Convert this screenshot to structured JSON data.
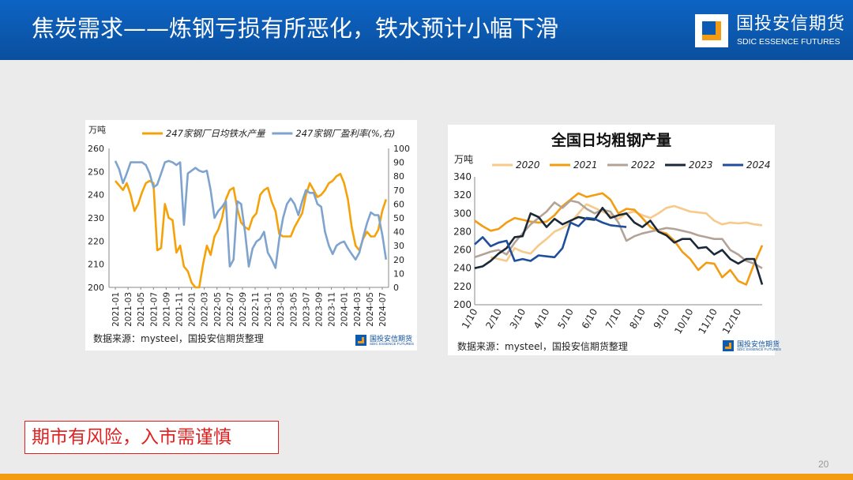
{
  "slide": {
    "title": "焦炭需求——炼钢亏损有所恶化，铁水预计小幅下滑",
    "page_number": "20",
    "risk_notice": "期市有风险，入市需谨慎"
  },
  "logo": {
    "name_cn": "国投安信期货",
    "name_en": "SDIC ESSENCE FUTURES",
    "mini_cn": "国投安信期货",
    "mini_en": "SDIC ESSENCE FUTURES"
  },
  "colors": {
    "header": "#0b5bb5",
    "accent": "#f39c12",
    "risk": "#e02020"
  },
  "chart_data": [
    {
      "type": "line",
      "title": "",
      "left_unit": "万吨",
      "source": "数据来源：mysteel，国投安信期货整理",
      "x_ticks": [
        "2021-01",
        "2021-03",
        "2021-05",
        "2021-07",
        "2021-09",
        "2021-11",
        "2022-01",
        "2022-03",
        "2022-05",
        "2022-07",
        "2022-09",
        "2022-11",
        "2023-01",
        "2023-03",
        "2023-05",
        "2023-07",
        "2023-09",
        "2023-11",
        "2024-01",
        "2024-03",
        "2024-05",
        "2024-07"
      ],
      "y_left": {
        "min": 200,
        "max": 260,
        "ticks": [
          200,
          210,
          220,
          230,
          240,
          250,
          260
        ]
      },
      "y_right": {
        "min": 0,
        "max": 100,
        "ticks": [
          0,
          10,
          20,
          30,
          40,
          50,
          60,
          70,
          80,
          90,
          100
        ]
      },
      "series": [
        {
          "name": "247家钢厂日均铁水产量",
          "axis": "left",
          "color": "#f5a20a",
          "x": [
            0,
            0.3,
            0.6,
            0.9,
            1.2,
            1.5,
            1.8,
            2.1,
            2.4,
            2.7,
            3,
            3.3,
            3.6,
            3.9,
            4.2,
            4.5,
            4.8,
            5.1,
            5.4,
            5.7,
            6,
            6.3,
            6.6,
            6.9,
            7.2,
            7.5,
            7.8,
            8.1,
            8.4,
            8.7,
            9,
            9.3,
            9.6,
            9.9,
            10.2,
            10.5,
            10.8,
            11.1,
            11.4,
            11.7,
            12,
            12.3,
            12.6,
            12.9,
            13.2,
            13.5,
            13.8,
            14.1,
            14.4,
            14.7,
            15,
            15.3,
            15.6,
            15.9,
            16.2,
            16.5,
            16.8,
            17.1,
            17.4,
            17.7,
            18,
            18.3,
            18.6,
            18.9,
            19.2,
            19.5,
            19.8,
            20.1,
            20.4,
            20.7,
            21,
            21.3
          ],
          "values": [
            246,
            244,
            242,
            245,
            240,
            233,
            236,
            241,
            245,
            246,
            245,
            216,
            217,
            236,
            230,
            229,
            215,
            218,
            209,
            207,
            202,
            200,
            200,
            210,
            218,
            214,
            222,
            225,
            230,
            238,
            242,
            243,
            234,
            228,
            226,
            225,
            230,
            232,
            240,
            242,
            243,
            237,
            233,
            223,
            222,
            222,
            222,
            226,
            229,
            232,
            240,
            245,
            242,
            239,
            240,
            242,
            245,
            246,
            248,
            249,
            245,
            238,
            226,
            218,
            216,
            221,
            224,
            222,
            222,
            225,
            233,
            238
          ]
        },
        {
          "name": "247家钢厂盈利率(%,右)",
          "axis": "right",
          "color": "#7fa3cf",
          "x": [
            0,
            0.3,
            0.6,
            0.9,
            1.2,
            1.5,
            1.8,
            2.1,
            2.4,
            2.7,
            3,
            3.3,
            3.6,
            3.9,
            4.2,
            4.5,
            4.8,
            5.1,
            5.4,
            5.7,
            6,
            6.3,
            6.6,
            6.9,
            7.2,
            7.5,
            7.8,
            8.1,
            8.4,
            8.7,
            9,
            9.3,
            9.6,
            9.9,
            10.2,
            10.5,
            10.8,
            11.1,
            11.4,
            11.7,
            12,
            12.3,
            12.6,
            12.9,
            13.2,
            13.5,
            13.8,
            14.1,
            14.4,
            14.7,
            15,
            15.3,
            15.6,
            15.9,
            16.2,
            16.5,
            16.8,
            17.1,
            17.4,
            17.7,
            18,
            18.3,
            18.6,
            18.9,
            19.2,
            19.5,
            19.8,
            20.1,
            20.4,
            20.7,
            21,
            21.3
          ],
          "values": [
            91,
            85,
            75,
            82,
            90,
            90,
            90,
            90,
            88,
            82,
            72,
            74,
            82,
            90,
            91,
            90,
            88,
            90,
            45,
            82,
            84,
            86,
            84,
            83,
            84,
            70,
            50,
            55,
            58,
            62,
            15,
            20,
            62,
            60,
            40,
            15,
            28,
            33,
            35,
            40,
            25,
            20,
            14,
            35,
            50,
            60,
            64,
            60,
            52,
            62,
            70,
            68,
            68,
            60,
            58,
            40,
            30,
            24,
            30,
            32,
            33,
            28,
            24,
            20,
            25,
            36,
            46,
            54,
            52,
            52,
            38,
            20
          ]
        }
      ]
    },
    {
      "type": "line",
      "title": "全国日均粗钢产量",
      "y_unit": "万吨",
      "source": "数据来源：mysteel，国投安信期货整理",
      "x_ticks": [
        "1/10",
        "2/10",
        "3/10",
        "4/10",
        "5/10",
        "6/10",
        "7/10",
        "8/10",
        "9/10",
        "10/10",
        "11/10",
        "12/10"
      ],
      "y_axis": {
        "min": 200,
        "max": 340,
        "ticks": [
          200,
          220,
          240,
          260,
          280,
          300,
          320,
          340
        ]
      },
      "series": [
        {
          "name": "2020",
          "color": "#f7c98a",
          "x": [
            2,
            3,
            4,
            5,
            6,
            7,
            8,
            9,
            10,
            11,
            12,
            13,
            14,
            15,
            16,
            17,
            18,
            19,
            20,
            21,
            22,
            23,
            24,
            25,
            26,
            27,
            28,
            29,
            30,
            31,
            32,
            33,
            34,
            35,
            36
          ],
          "values": [
            252,
            250,
            248,
            262,
            258,
            256,
            265,
            272,
            280,
            284,
            290,
            300,
            310,
            306,
            302,
            298,
            294,
            300,
            302,
            298,
            295,
            300,
            306,
            308,
            305,
            302,
            301,
            300,
            292,
            288,
            290,
            289,
            290,
            288,
            287
          ]
        },
        {
          "name": "2021",
          "color": "#f39c12",
          "x": [
            0,
            1,
            2,
            3,
            4,
            5,
            6,
            7,
            8,
            9,
            10,
            11,
            12,
            13,
            14,
            15,
            16,
            17,
            18,
            19,
            20,
            21,
            22,
            23,
            24,
            25,
            26,
            27,
            28,
            29,
            30,
            31,
            32,
            33,
            34,
            35,
            36
          ],
          "values": [
            292,
            286,
            281,
            283,
            290,
            295,
            293,
            291,
            290,
            291,
            298,
            308,
            315,
            322,
            318,
            320,
            322,
            315,
            300,
            305,
            304,
            295,
            285,
            280,
            278,
            270,
            258,
            250,
            238,
            246,
            245,
            230,
            238,
            226,
            222,
            245,
            265
          ]
        },
        {
          "name": "2022",
          "color": "#b3a397",
          "x": [
            0,
            1,
            2,
            3,
            4,
            5,
            6,
            7,
            8,
            9,
            10,
            11,
            12,
            13,
            14,
            15,
            16,
            17,
            18,
            19,
            20,
            21,
            22,
            23,
            24,
            25,
            26,
            27,
            28,
            29,
            30,
            31,
            32,
            33,
            34,
            35,
            36
          ],
          "values": [
            252,
            255,
            258,
            260,
            255,
            268,
            278,
            288,
            295,
            302,
            312,
            306,
            314,
            312,
            305,
            300,
            304,
            302,
            290,
            270,
            275,
            278,
            280,
            282,
            284,
            283,
            281,
            279,
            276,
            274,
            272,
            272,
            260,
            255,
            248,
            245,
            240
          ]
        },
        {
          "name": "2023",
          "color": "#1b2838",
          "x": [
            0,
            1,
            2,
            3,
            4,
            5,
            6,
            7,
            8,
            9,
            10,
            11,
            12,
            13,
            14,
            15,
            16,
            17,
            18,
            19,
            20,
            21,
            22,
            23,
            24,
            25,
            26,
            27,
            28,
            29,
            30,
            31,
            32,
            33,
            34,
            35,
            36
          ],
          "values": [
            240,
            242,
            248,
            256,
            262,
            274,
            275,
            300,
            296,
            285,
            294,
            288,
            292,
            296,
            294,
            293,
            306,
            295,
            298,
            300,
            290,
            285,
            292,
            280,
            276,
            268,
            272,
            272,
            262,
            263,
            255,
            260,
            250,
            245,
            250,
            250,
            222
          ]
        },
        {
          "name": "2024",
          "color": "#1f4e9c",
          "x": [
            0,
            1,
            2,
            3,
            4,
            5,
            6,
            7,
            8,
            9,
            10,
            11,
            12,
            13,
            14,
            15,
            16,
            17,
            18,
            19
          ],
          "values": [
            266,
            274,
            264,
            268,
            270,
            248,
            250,
            248,
            254,
            253,
            252,
            262,
            290,
            286,
            295,
            294,
            290,
            287,
            286,
            285
          ]
        }
      ]
    }
  ]
}
